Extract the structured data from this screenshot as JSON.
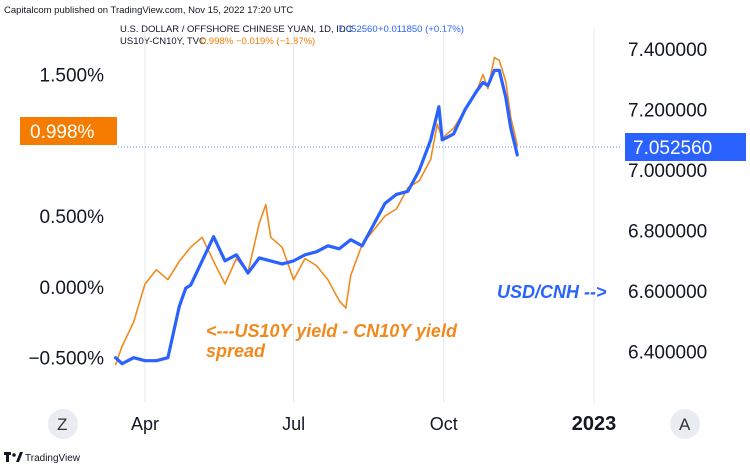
{
  "published_text": "Capitalcom published on TradingView.com, Nov 15, 2022 17:20 UTC",
  "legend": {
    "usdcnh": {
      "label": "U.S. DOLLAR / OFFSHORE CHINESE YUAN, 1D, IDC",
      "value": "7.052560",
      "change": "+0.011850 (+0.17%)"
    },
    "spread": {
      "label": "US10Y-CN10Y, TVC",
      "value": "0.998%",
      "change": "−0.019% (−1.87%)"
    }
  },
  "left_badge": "0.998%",
  "right_badge": "7.052560",
  "annotations": {
    "spread_line1": "<---US10Y yield - CN10Y yield",
    "spread_line2": "spread",
    "usdcnh": "USD/CNH -->"
  },
  "buttons": {
    "zoom": "Z",
    "auto": "A"
  },
  "footer_brand": "TradingView",
  "colors": {
    "usdcnh": "#2962ff",
    "spread": "#f08a1e",
    "left_badge": "#f57c00",
    "right_badge": "#2962ff"
  },
  "chart_data": {
    "type": "line",
    "x_ticks": [
      "Apr",
      "Jul",
      "Oct",
      "2023"
    ],
    "left_axis": {
      "ticks": [
        "1.500%",
        "0.500%",
        "0.000%",
        "−0.500%"
      ],
      "range": [
        -0.8,
        1.85
      ],
      "unit": "%"
    },
    "right_axis": {
      "ticks": [
        "7.400000",
        "7.200000",
        "7.000000",
        "6.800000",
        "6.600000",
        "6.400000"
      ],
      "range": [
        6.24,
        7.48
      ]
    },
    "series": [
      {
        "name": "USD/CNH",
        "axis": "right",
        "x": [
          "2022-03-14",
          "2022-03-18",
          "2022-03-25",
          "2022-04-01",
          "2022-04-08",
          "2022-04-15",
          "2022-04-22",
          "2022-04-26",
          "2022-04-29",
          "2022-05-06",
          "2022-05-13",
          "2022-05-20",
          "2022-05-27",
          "2022-06-03",
          "2022-06-10",
          "2022-06-17",
          "2022-06-24",
          "2022-07-01",
          "2022-07-08",
          "2022-07-15",
          "2022-07-22",
          "2022-07-29",
          "2022-08-05",
          "2022-08-12",
          "2022-08-19",
          "2022-08-26",
          "2022-09-02",
          "2022-09-09",
          "2022-09-16",
          "2022-09-23",
          "2022-09-28",
          "2022-09-30",
          "2022-10-07",
          "2022-10-14",
          "2022-10-21",
          "2022-10-25",
          "2022-10-28",
          "2022-11-01",
          "2022-11-04",
          "2022-11-08",
          "2022-11-11",
          "2022-11-15"
        ],
        "values": [
          6.38,
          6.36,
          6.38,
          6.37,
          6.37,
          6.38,
          6.55,
          6.61,
          6.62,
          6.7,
          6.78,
          6.7,
          6.72,
          6.66,
          6.71,
          6.7,
          6.69,
          6.7,
          6.72,
          6.73,
          6.75,
          6.74,
          6.77,
          6.75,
          6.82,
          6.89,
          6.92,
          6.93,
          7.0,
          7.1,
          7.21,
          7.1,
          7.12,
          7.2,
          7.26,
          7.29,
          7.28,
          7.33,
          7.33,
          7.24,
          7.14,
          7.05
        ]
      },
      {
        "name": "US10Y-CN10Y",
        "axis": "left",
        "x": [
          "2022-03-14",
          "2022-03-18",
          "2022-03-25",
          "2022-04-01",
          "2022-04-08",
          "2022-04-15",
          "2022-04-22",
          "2022-04-29",
          "2022-05-06",
          "2022-05-13",
          "2022-05-20",
          "2022-05-27",
          "2022-06-03",
          "2022-06-10",
          "2022-06-14",
          "2022-06-17",
          "2022-06-24",
          "2022-07-01",
          "2022-07-08",
          "2022-07-15",
          "2022-07-22",
          "2022-07-29",
          "2022-08-02",
          "2022-08-05",
          "2022-08-12",
          "2022-08-19",
          "2022-08-26",
          "2022-09-02",
          "2022-09-09",
          "2022-09-16",
          "2022-09-23",
          "2022-09-27",
          "2022-09-30",
          "2022-10-07",
          "2022-10-14",
          "2022-10-21",
          "2022-10-25",
          "2022-10-28",
          "2022-11-01",
          "2022-11-04",
          "2022-11-08",
          "2022-11-11",
          "2022-11-15"
        ],
        "values": [
          -0.55,
          -0.42,
          -0.25,
          0.02,
          0.12,
          0.05,
          0.18,
          0.28,
          0.35,
          0.18,
          0.02,
          0.2,
          0.1,
          0.45,
          0.58,
          0.35,
          0.28,
          0.05,
          0.2,
          0.15,
          0.05,
          -0.1,
          -0.15,
          0.08,
          0.3,
          0.4,
          0.5,
          0.55,
          0.7,
          0.75,
          0.9,
          1.15,
          1.05,
          1.12,
          1.25,
          1.38,
          1.5,
          1.4,
          1.62,
          1.6,
          1.45,
          1.2,
          1.0
        ]
      }
    ]
  }
}
